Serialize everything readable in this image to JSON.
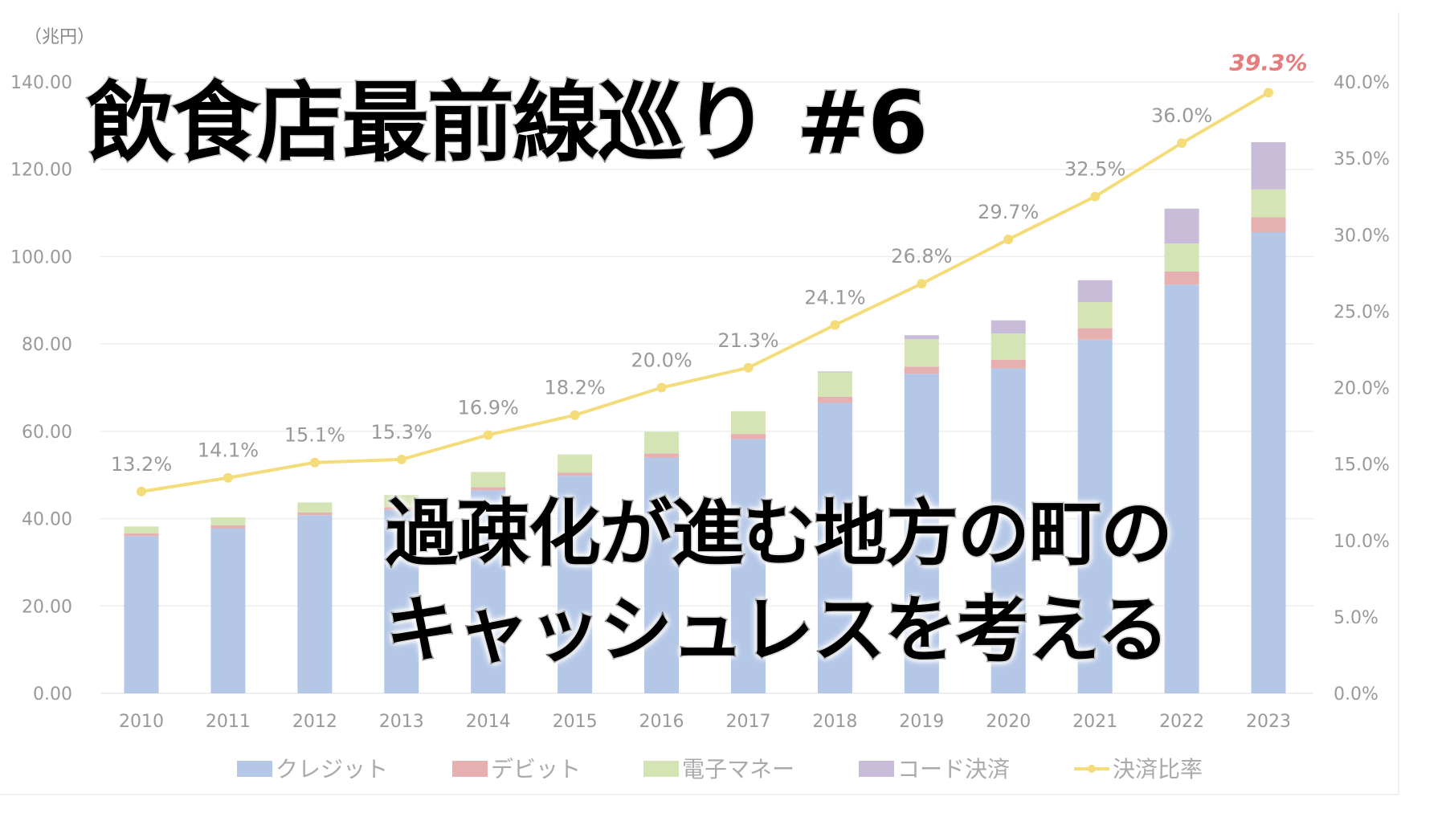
{
  "chart_data": {
    "type": "bar",
    "stacked": true,
    "unit_label": "（兆円）",
    "categories": [
      "2010",
      "2011",
      "2012",
      "2013",
      "2014",
      "2015",
      "2016",
      "2017",
      "2018",
      "2019",
      "2020",
      "2021",
      "2022",
      "2023"
    ],
    "series": [
      {
        "name": "クレジット",
        "color": "#b4c7e7",
        "values": [
          36.0,
          37.8,
          40.8,
          42.0,
          46.5,
          49.8,
          54.0,
          58.2,
          66.5,
          73.2,
          74.4,
          81.0,
          93.6,
          105.6
        ]
      },
      {
        "name": "デビット",
        "color": "#e6b0b0",
        "values": [
          0.6,
          0.7,
          0.6,
          0.6,
          0.7,
          0.7,
          0.9,
          1.2,
          1.4,
          1.6,
          2.0,
          2.6,
          3.0,
          3.4
        ]
      },
      {
        "name": "電子マネー",
        "color": "#d5e4b5",
        "values": [
          1.6,
          1.8,
          2.3,
          2.8,
          3.5,
          4.2,
          5.0,
          5.2,
          5.6,
          6.3,
          6.0,
          6.0,
          6.4,
          6.4
        ]
      },
      {
        "name": "コード決済",
        "color": "#c9bcd9",
        "values": [
          0,
          0,
          0,
          0,
          0,
          0,
          0,
          0,
          0.2,
          0.9,
          3.0,
          5.0,
          8.0,
          10.8
        ]
      }
    ],
    "line_series": {
      "name": "決済比率",
      "color": "#f5dc7a",
      "axis": "right",
      "values": [
        13.2,
        14.1,
        15.1,
        15.3,
        16.9,
        18.2,
        20.0,
        21.3,
        24.1,
        26.8,
        29.7,
        32.5,
        36.0,
        39.3
      ],
      "labels": [
        "13.2%",
        "14.1%",
        "15.1%",
        "15.3%",
        "16.9%",
        "18.2%",
        "20.0%",
        "21.3%",
        "24.1%",
        "26.8%",
        "29.7%",
        "32.5%",
        "36.0%",
        "39.3%"
      ],
      "highlight_color": "#e87c7c"
    },
    "ylim": [
      0,
      140
    ],
    "y_ticks": [
      "0.00",
      "20.00",
      "40.00",
      "60.00",
      "80.00",
      "100.00",
      "120.00",
      "140.00"
    ],
    "y2lim": [
      0,
      40
    ],
    "y2_ticks": [
      "0.0%",
      "5.0%",
      "10.0%",
      "15.0%",
      "20.0%",
      "25.0%",
      "30.0%",
      "35.0%",
      "40.0%"
    ],
    "grid": true,
    "legend_position": "bottom"
  },
  "overlay": {
    "title": "飲食店最前線巡り #6",
    "subtitle_line1": "過疎化が進む地方の町の",
    "subtitle_line2": "キャッシュレスを考える"
  }
}
